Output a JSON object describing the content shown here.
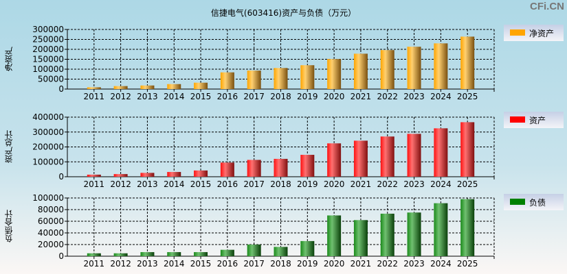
{
  "title": "信捷电气(603416)资产与负债（万元）",
  "logo": "CFi.CN",
  "chart_data": [
    {
      "type": "bar",
      "title": "净资产",
      "ylabel": "净资产",
      "legend": "净资产",
      "legend_position": "right",
      "color": "#ffa500",
      "categories": [
        "2011",
        "2012",
        "2013",
        "2014",
        "2015",
        "2016",
        "2017",
        "2018",
        "2019",
        "2020",
        "2021",
        "2022",
        "2023",
        "2024",
        "2025"
      ],
      "values": [
        9000,
        15000,
        18000,
        25000,
        32000,
        84000,
        93000,
        106000,
        120000,
        151000,
        178000,
        196000,
        213000,
        230000,
        264000
      ],
      "ylim": [
        0,
        300000
      ],
      "yticks": [
        0,
        50000,
        100000,
        150000,
        200000,
        250000,
        300000
      ],
      "grid": true
    },
    {
      "type": "bar",
      "title": "资产",
      "ylabel": "资产总计",
      "legend": "资产",
      "legend_position": "right",
      "color": "#ff0000",
      "categories": [
        "2011",
        "2012",
        "2013",
        "2014",
        "2015",
        "2016",
        "2017",
        "2018",
        "2019",
        "2020",
        "2021",
        "2022",
        "2023",
        "2024",
        "2025"
      ],
      "values": [
        14000,
        18000,
        26000,
        32000,
        42000,
        95000,
        113000,
        120000,
        147000,
        224000,
        242000,
        270000,
        288000,
        325000,
        366000
      ],
      "ylim": [
        0,
        400000
      ],
      "yticks": [
        0,
        100000,
        200000,
        300000,
        400000
      ],
      "grid": true
    },
    {
      "type": "bar",
      "title": "负债",
      "ylabel": "负债合计",
      "legend": "负债",
      "legend_position": "right",
      "color": "#008000",
      "categories": [
        "2011",
        "2012",
        "2013",
        "2014",
        "2015",
        "2016",
        "2017",
        "2018",
        "2019",
        "2020",
        "2021",
        "2022",
        "2023",
        "2024",
        "2025"
      ],
      "values": [
        5000,
        5000,
        7000,
        7000,
        7000,
        11000,
        20000,
        16000,
        26000,
        70000,
        62000,
        73000,
        75000,
        91000,
        98000
      ],
      "ylim": [
        0,
        100000
      ],
      "yticks": [
        0,
        20000,
        40000,
        60000,
        80000,
        100000
      ],
      "grid": true
    }
  ]
}
